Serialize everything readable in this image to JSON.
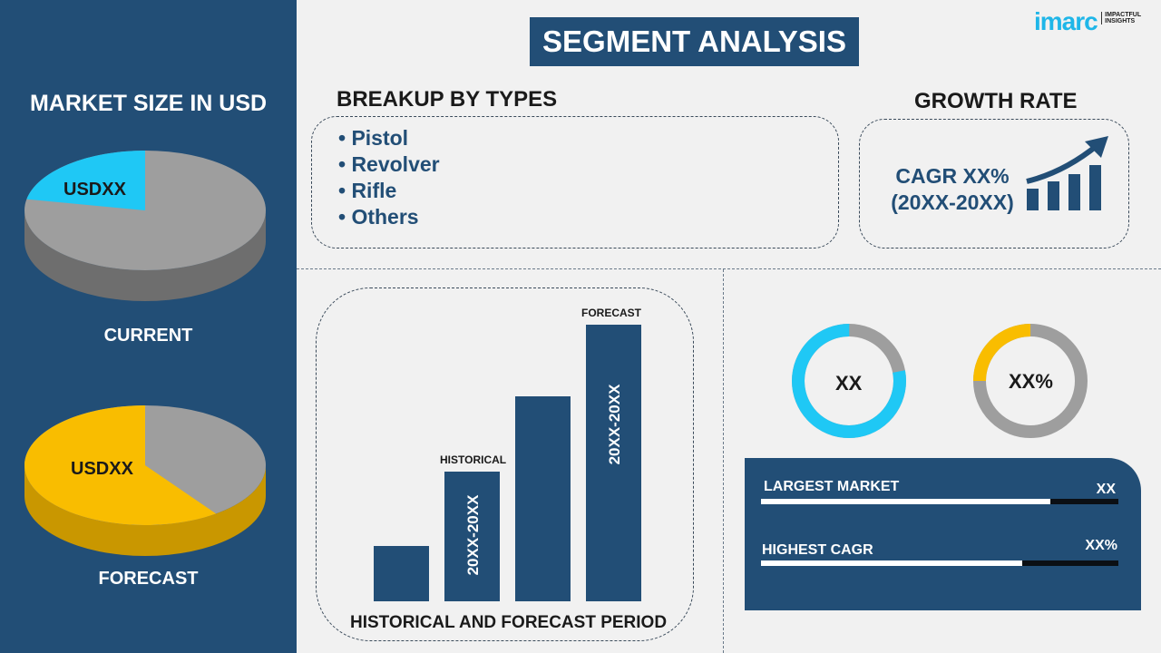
{
  "left_panel": {
    "title": "MARKET SIZE IN USD",
    "current_label": "CURRENT",
    "current_value": "USDXX",
    "forecast_label": "FORECAST",
    "forecast_value": "USDXX",
    "current_pie": {
      "highlight_share": 0.22,
      "highlight_color": "#1fc8f5",
      "rest_color": "#9e9e9e"
    },
    "forecast_pie": {
      "highlight_share": 0.6,
      "highlight_color": "#f9bd00",
      "rest_color": "#9e9e9e"
    }
  },
  "header": {
    "title": "SEGMENT ANALYSIS",
    "logo": "imarc",
    "logo_tagline": "IMPACTFUL INSIGHTS"
  },
  "breakup": {
    "title": "BREAKUP BY TYPES",
    "items": [
      "• Pistol",
      "• Revolver",
      "• Rifle",
      "• Others"
    ]
  },
  "growth": {
    "title": "GROWTH RATE",
    "line1": "CAGR XX%",
    "line2": "(20XX-20XX)",
    "icon": "growth-chart-arrow-icon"
  },
  "chart_data": {
    "type": "bar",
    "title": "HISTORICAL AND FORECAST PERIOD",
    "values": [
      20,
      47,
      74,
      100
    ],
    "annotations": {
      "historical": "HISTORICAL",
      "forecast": "FORECAST",
      "historical_period": "20XX-20XX",
      "forecast_period": "20XX-20XX"
    },
    "color": "#224e76"
  },
  "donuts": [
    {
      "label": "XX",
      "share": 0.78,
      "color": "#1fc8f5",
      "rest_color": "#9e9e9e"
    },
    {
      "label": "XX%",
      "share": 0.25,
      "color": "#f9bd00",
      "rest_color": "#9e9e9e"
    }
  ],
  "stats": [
    {
      "label": "LARGEST MARKET",
      "value": "XX",
      "progress": 0.81
    },
    {
      "label": "HIGHEST CAGR",
      "value": "XX%",
      "progress": 0.73
    }
  ],
  "colors": {
    "navy": "#224e76",
    "cyan": "#1fc8f5",
    "yellow": "#f9bd00",
    "gray": "#9e9e9e"
  }
}
